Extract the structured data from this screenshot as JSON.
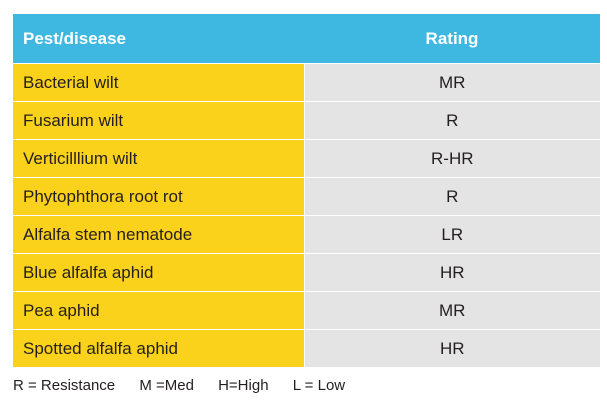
{
  "table": {
    "headers": {
      "pest": "Pest/disease",
      "rating": "Rating"
    },
    "rows": [
      {
        "pest": "Bacterial wilt",
        "rating": "MR"
      },
      {
        "pest": "Fusarium wilt",
        "rating": "R"
      },
      {
        "pest": "Verticilllium wilt",
        "rating": "R-HR"
      },
      {
        "pest": "Phytophthora root rot",
        "rating": "R"
      },
      {
        "pest": "Alfalfa stem nematode",
        "rating": "LR"
      },
      {
        "pest": "Blue alfalfa aphid",
        "rating": "HR"
      },
      {
        "pest": "Pea aphid",
        "rating": "MR"
      },
      {
        "pest": "Spotted alfalfa aphid",
        "rating": "HR"
      }
    ]
  },
  "legend": [
    "R = Resistance",
    "M =Med",
    "H=High",
    "L = Low"
  ],
  "colors": {
    "header_bg": "#3eb8e0",
    "pest_col_bg": "#fbd21b",
    "rating_col_bg": "#e4e4e5"
  }
}
